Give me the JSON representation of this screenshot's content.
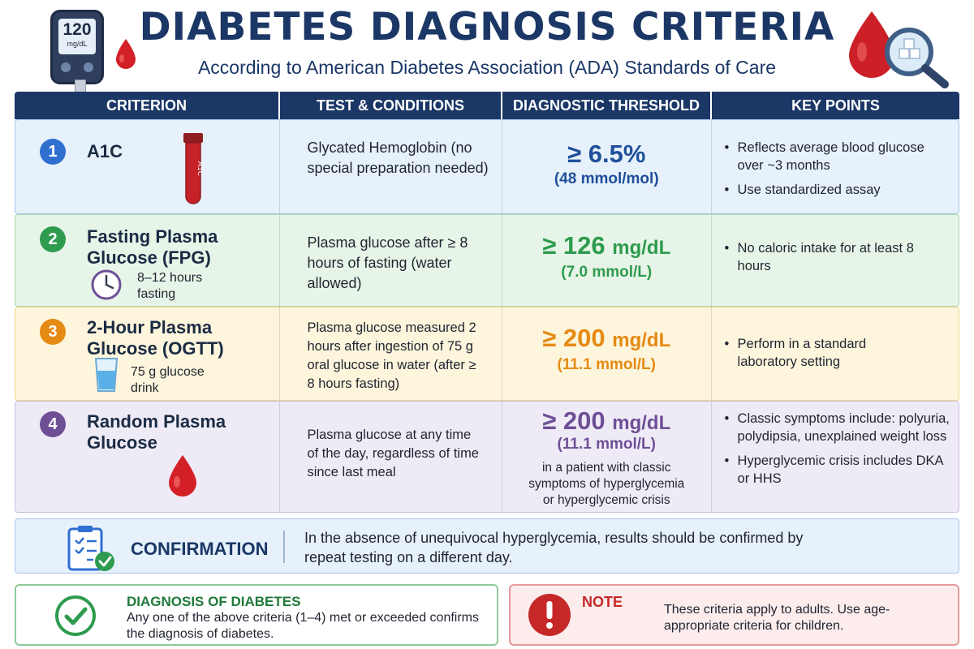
{
  "header": {
    "title": "DIABETES DIAGNOSIS CRITERIA",
    "subtitle": "According to American Diabetes Association (ADA) Standards of Care",
    "meter_value": "120",
    "meter_unit": "mg/dL"
  },
  "table": {
    "columns": [
      "CRITERION",
      "TEST & CONDITIONS",
      "DIAGNOSTIC THRESHOLD",
      "KEY POINTS"
    ],
    "rows": [
      {
        "number": "1",
        "criterion": "A1C",
        "tube_label": "A1C",
        "test": "Glycated Hemoglobin (no special preparation needed)",
        "threshold": "≥ 6.5%",
        "threshold_sub": "(48 mmol/mol)",
        "key_points": [
          "Reflects average blood glucose over ~3 months",
          "Use standardized assay"
        ],
        "color": "#2f6fd0"
      },
      {
        "number": "2",
        "criterion": "Fasting Plasma Glucose (FPG)",
        "detail": "8–12 hours fasting",
        "test": "Plasma glucose after ≥ 8 hours of fasting (water allowed)",
        "threshold_symbol": "≥ 126",
        "threshold_unit": "mg/dL",
        "threshold_sub": "(7.0 mmol/L)",
        "key_points": [
          "No caloric intake for at least 8 hours"
        ],
        "color": "#2e9b4e"
      },
      {
        "number": "3",
        "criterion": "2-Hour Plasma Glucose (OGTT)",
        "detail": "75 g glucose drink",
        "test": "Plasma glucose measured 2 hours after ingestion of 75 g oral glucose in water (after ≥ 8 hours fasting)",
        "threshold_symbol": "≥ 200",
        "threshold_unit": "mg/dL",
        "threshold_sub": "(11.1 mmol/L)",
        "key_points": [
          "Perform in a standard laboratory setting"
        ],
        "color": "#e58a12"
      },
      {
        "number": "4",
        "criterion": "Random Plasma Glucose",
        "test": "Plasma glucose at any time of the day, regardless of time since last meal",
        "threshold_symbol": "≥ 200",
        "threshold_unit": "mg/dL",
        "threshold_sub": "(11.1 mmol/L)",
        "threshold_condition": "in a patient with classic symptoms of hyperglycemia or hyperglycemic crisis",
        "key_points": [
          "Classic symptoms include: polyuria, polydipsia, unexplained weight loss",
          "Hyperglycemic crisis includes DKA or HHS"
        ],
        "color": "#6e4f96"
      }
    ]
  },
  "confirmation": {
    "label": "CONFIRMATION",
    "text": "In the absence of unequivocal hyperglycemia, results should be confirmed by repeat testing on a different day."
  },
  "diagnosis": {
    "title": "DIAGNOSIS OF DIABETES",
    "text": "Any one of the above criteria (1–4) met or exceeded confirms the diagnosis of diabetes."
  },
  "note": {
    "title": "NOTE",
    "text": "These criteria apply to adults. Use age-appropriate criteria for children."
  },
  "icons": [
    "glucose-meter-icon",
    "blood-drop-icon",
    "magnifier-glucose-icon",
    "test-tube-icon",
    "clock-icon",
    "glass-icon",
    "clipboard-check-icon",
    "check-circle-icon",
    "exclamation-icon"
  ]
}
